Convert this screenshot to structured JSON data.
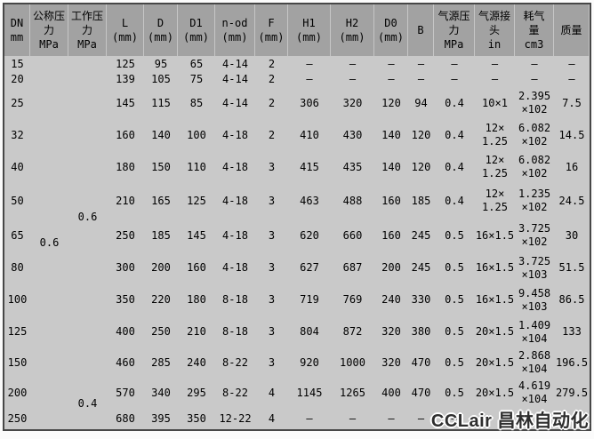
{
  "table": {
    "headers": [
      "DN\nmm",
      "公称压\n力\nMPa",
      "工作压\n力\nMPa",
      "L\n(mm)",
      "D\n(mm)",
      "D1\n(mm)",
      "n-od\n(mm)",
      "F\n(mm)",
      "H1\n(mm)",
      "H2\n(mm)",
      "D0\n(mm)",
      "B",
      "气源压\n力\nMPa",
      "气源接\n头\nin",
      "耗气\n量\ncm3",
      "质量"
    ],
    "rows": [
      {
        "dn": "15",
        "cells": [
          "125",
          "95",
          "65",
          "4-14",
          "2",
          "–",
          "–",
          "–",
          "–",
          "–",
          "–",
          "–",
          "–"
        ]
      },
      {
        "dn": "20",
        "cells": [
          "139",
          "105",
          "75",
          "4-14",
          "2",
          "–",
          "–",
          "–",
          "–",
          "–",
          "–",
          "–",
          "–"
        ]
      },
      {
        "dn": "25",
        "cells": [
          "145",
          "115",
          "85",
          "4-14",
          "2",
          "306",
          "320",
          "120",
          "94",
          "0.4",
          "10×1",
          "2.395\n×102",
          "7.5"
        ]
      },
      {
        "dn": "32",
        "cells": [
          "160",
          "140",
          "100",
          "4-18",
          "2",
          "410",
          "430",
          "140",
          "120",
          "0.4",
          "12×\n1.25",
          "6.082\n×102",
          "14.5"
        ]
      },
      {
        "dn": "40",
        "cells": [
          "180",
          "150",
          "110",
          "4-18",
          "3",
          "415",
          "435",
          "140",
          "120",
          "0.4",
          "12×\n1.25",
          "6.082\n×102",
          "16"
        ]
      },
      {
        "dn": "50",
        "cells": [
          "210",
          "165",
          "125",
          "4-18",
          "3",
          "463",
          "488",
          "160",
          "185",
          "0.4",
          "12×\n1.25",
          "1.235\n×102",
          "24.5"
        ]
      },
      {
        "dn": "65",
        "cells": [
          "250",
          "185",
          "145",
          "4-18",
          "3",
          "620",
          "660",
          "160",
          "245",
          "0.5",
          "16×1.5",
          "3.725\n×102",
          "30"
        ]
      },
      {
        "dn": "80",
        "cells": [
          "300",
          "200",
          "160",
          "4-18",
          "3",
          "627",
          "687",
          "200",
          "245",
          "0.5",
          "16×1.5",
          "3.725\n×103",
          "51.5"
        ]
      },
      {
        "dn": "100",
        "cells": [
          "350",
          "220",
          "180",
          "8-18",
          "3",
          "719",
          "769",
          "240",
          "330",
          "0.5",
          "16×1.5",
          "9.458\n×103",
          "86.5"
        ]
      },
      {
        "dn": "125",
        "cells": [
          "400",
          "250",
          "210",
          "8-18",
          "3",
          "804",
          "872",
          "320",
          "380",
          "0.5",
          "20×1.5",
          "1.409\n×104",
          "133"
        ]
      },
      {
        "dn": "150",
        "cells": [
          "460",
          "285",
          "240",
          "8-22",
          "3",
          "920",
          "1000",
          "320",
          "470",
          "0.5",
          "20×1.5",
          "2.868\n×104",
          "196.5"
        ]
      },
      {
        "dn": "200",
        "cells": [
          "570",
          "340",
          "295",
          "8-22",
          "4",
          "1145",
          "1265",
          "400",
          "470",
          "0.5",
          "20×1.5",
          "4.619\n×104",
          "279.5"
        ]
      },
      {
        "dn": "250",
        "cells": [
          "680",
          "395",
          "350",
          "12-22",
          "4",
          "–",
          "–",
          "–",
          "–",
          "–",
          "",
          "",
          ""
        ]
      }
    ],
    "merged": [
      {
        "label": "nominal-pressure",
        "col": 2,
        "row": 1,
        "span": 13,
        "text": "0.6"
      },
      {
        "label": "working-pressure-upper",
        "col": 3,
        "row": 1,
        "span": 11,
        "text": "0.6"
      },
      {
        "label": "working-pressure-lower",
        "col": 3,
        "row": 12,
        "span": 2,
        "text": "0.4"
      }
    ]
  },
  "watermark": {
    "text": "CCLair 昌林自动化"
  },
  "colors": {
    "header_bg": "#a2a2a2",
    "body_bg": "#c9c9c9",
    "border": "#474747",
    "text": "#000000",
    "watermark": "#2e2e2e"
  }
}
